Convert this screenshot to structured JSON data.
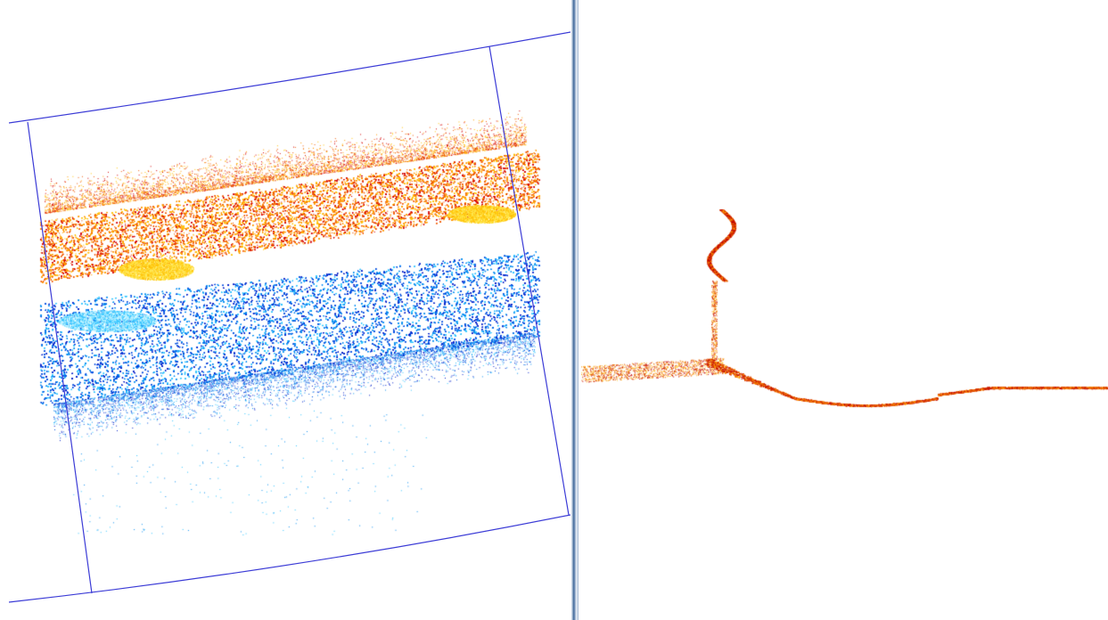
{
  "colors": {
    "background": "#ffffff",
    "frame_line": "#3b3bd6",
    "hot_scale": [
      "#d40000",
      "#f05a00",
      "#ff9a00",
      "#ffc000",
      "#ffe84a"
    ],
    "cool_scale": [
      "#0020c8",
      "#0050e0",
      "#0a8ff0",
      "#30c4ff",
      "#bff4ff"
    ],
    "profile_scale": [
      "#c00000",
      "#e05000",
      "#ff9900",
      "#ffcc33"
    ]
  },
  "left_view": {
    "type": "point-cloud-top-view",
    "clusters": [
      {
        "name": "upper-band",
        "palette": "hot"
      },
      {
        "name": "lower-band",
        "palette": "cool"
      },
      {
        "name": "bright-patch-left",
        "palette": "hot"
      },
      {
        "name": "bright-patch-right",
        "palette": "hot"
      }
    ]
  },
  "right_view": {
    "type": "point-cloud-side-profile",
    "palette": "profile"
  }
}
